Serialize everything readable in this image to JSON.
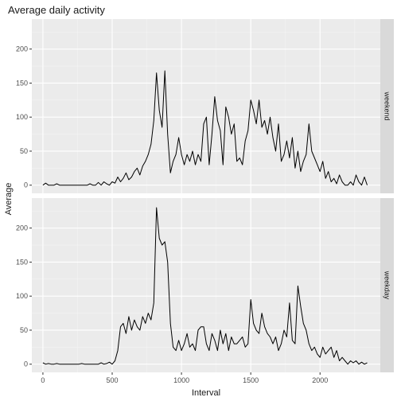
{
  "chart_data": {
    "type": "line",
    "title": "Average daily activity",
    "xlabel": "Interval",
    "ylabel": "Average",
    "xlim": [
      -80,
      2435
    ],
    "ylim": [
      -12,
      244
    ],
    "xticks": [
      0,
      500,
      1000,
      1500,
      2000
    ],
    "yticks": [
      0,
      50,
      100,
      150,
      200
    ],
    "grid": true,
    "line_color": "#000000",
    "panels": [
      {
        "name": "weekend",
        "x": [
          0,
          20,
          40,
          60,
          80,
          100,
          120,
          140,
          160,
          180,
          200,
          220,
          240,
          260,
          280,
          300,
          320,
          340,
          360,
          380,
          400,
          420,
          440,
          460,
          480,
          500,
          520,
          540,
          560,
          580,
          600,
          620,
          640,
          660,
          680,
          700,
          720,
          740,
          760,
          780,
          800,
          820,
          840,
          860,
          880,
          900,
          920,
          940,
          960,
          980,
          1000,
          1020,
          1040,
          1060,
          1080,
          1100,
          1120,
          1140,
          1160,
          1180,
          1200,
          1220,
          1240,
          1260,
          1280,
          1300,
          1320,
          1340,
          1360,
          1380,
          1400,
          1420,
          1440,
          1460,
          1480,
          1500,
          1520,
          1540,
          1560,
          1580,
          1600,
          1620,
          1640,
          1660,
          1680,
          1700,
          1720,
          1740,
          1760,
          1780,
          1800,
          1820,
          1840,
          1860,
          1880,
          1900,
          1920,
          1940,
          1960,
          1980,
          2000,
          2020,
          2040,
          2060,
          2080,
          2100,
          2120,
          2140,
          2160,
          2180,
          2200,
          2220,
          2240,
          2260,
          2280,
          2300,
          2320,
          2340
        ],
        "values": [
          0,
          3,
          0,
          0,
          0,
          2,
          0,
          0,
          0,
          0,
          0,
          0,
          0,
          0,
          0,
          0,
          0,
          2,
          0,
          0,
          4,
          0,
          5,
          2,
          0,
          5,
          3,
          12,
          5,
          10,
          18,
          8,
          12,
          20,
          25,
          15,
          28,
          35,
          45,
          60,
          95,
          165,
          110,
          85,
          168,
          75,
          18,
          35,
          45,
          70,
          45,
          30,
          45,
          35,
          50,
          30,
          45,
          35,
          90,
          100,
          30,
          75,
          130,
          95,
          80,
          30,
          115,
          100,
          75,
          90,
          35,
          40,
          30,
          65,
          80,
          125,
          110,
          90,
          125,
          85,
          95,
          75,
          100,
          70,
          50,
          90,
          35,
          45,
          65,
          40,
          70,
          25,
          50,
          20,
          35,
          45,
          90,
          50,
          40,
          30,
          20,
          35,
          10,
          20,
          5,
          10,
          2,
          15,
          5,
          0,
          0,
          5,
          0,
          15,
          5,
          0,
          12,
          0
        ],
        "strip_label": "weekend"
      },
      {
        "name": "weekday",
        "x": [
          0,
          20,
          40,
          60,
          80,
          100,
          120,
          140,
          160,
          180,
          200,
          220,
          240,
          260,
          280,
          300,
          320,
          340,
          360,
          380,
          400,
          420,
          440,
          460,
          480,
          500,
          520,
          540,
          560,
          580,
          600,
          620,
          640,
          660,
          680,
          700,
          720,
          740,
          760,
          780,
          800,
          820,
          840,
          860,
          880,
          900,
          920,
          940,
          960,
          980,
          1000,
          1020,
          1040,
          1060,
          1080,
          1100,
          1120,
          1140,
          1160,
          1180,
          1200,
          1220,
          1240,
          1260,
          1280,
          1300,
          1320,
          1340,
          1360,
          1380,
          1400,
          1420,
          1440,
          1460,
          1480,
          1500,
          1520,
          1540,
          1560,
          1580,
          1600,
          1620,
          1640,
          1660,
          1680,
          1700,
          1720,
          1740,
          1760,
          1780,
          1800,
          1820,
          1840,
          1860,
          1880,
          1900,
          1920,
          1940,
          1960,
          1980,
          2000,
          2020,
          2040,
          2060,
          2080,
          2100,
          2120,
          2140,
          2160,
          2180,
          2200,
          2220,
          2240,
          2260,
          2280,
          2300,
          2320,
          2340
        ],
        "values": [
          2,
          0,
          1,
          0,
          0,
          1,
          0,
          0,
          0,
          0,
          0,
          0,
          0,
          0,
          1,
          0,
          0,
          0,
          0,
          0,
          0,
          2,
          0,
          1,
          3,
          0,
          5,
          20,
          55,
          60,
          45,
          70,
          50,
          65,
          55,
          50,
          70,
          60,
          75,
          65,
          90,
          230,
          185,
          175,
          180,
          150,
          60,
          25,
          20,
          35,
          20,
          30,
          45,
          25,
          30,
          20,
          50,
          55,
          55,
          30,
          20,
          45,
          35,
          20,
          50,
          30,
          45,
          20,
          40,
          30,
          30,
          35,
          40,
          25,
          30,
          95,
          60,
          50,
          45,
          75,
          55,
          45,
          40,
          30,
          40,
          20,
          30,
          50,
          40,
          90,
          35,
          30,
          115,
          85,
          60,
          50,
          30,
          20,
          25,
          15,
          10,
          25,
          15,
          20,
          25,
          10,
          20,
          5,
          10,
          5,
          0,
          5,
          2,
          5,
          0,
          3,
          0,
          2
        ],
        "strip_label": "weekday"
      }
    ]
  }
}
